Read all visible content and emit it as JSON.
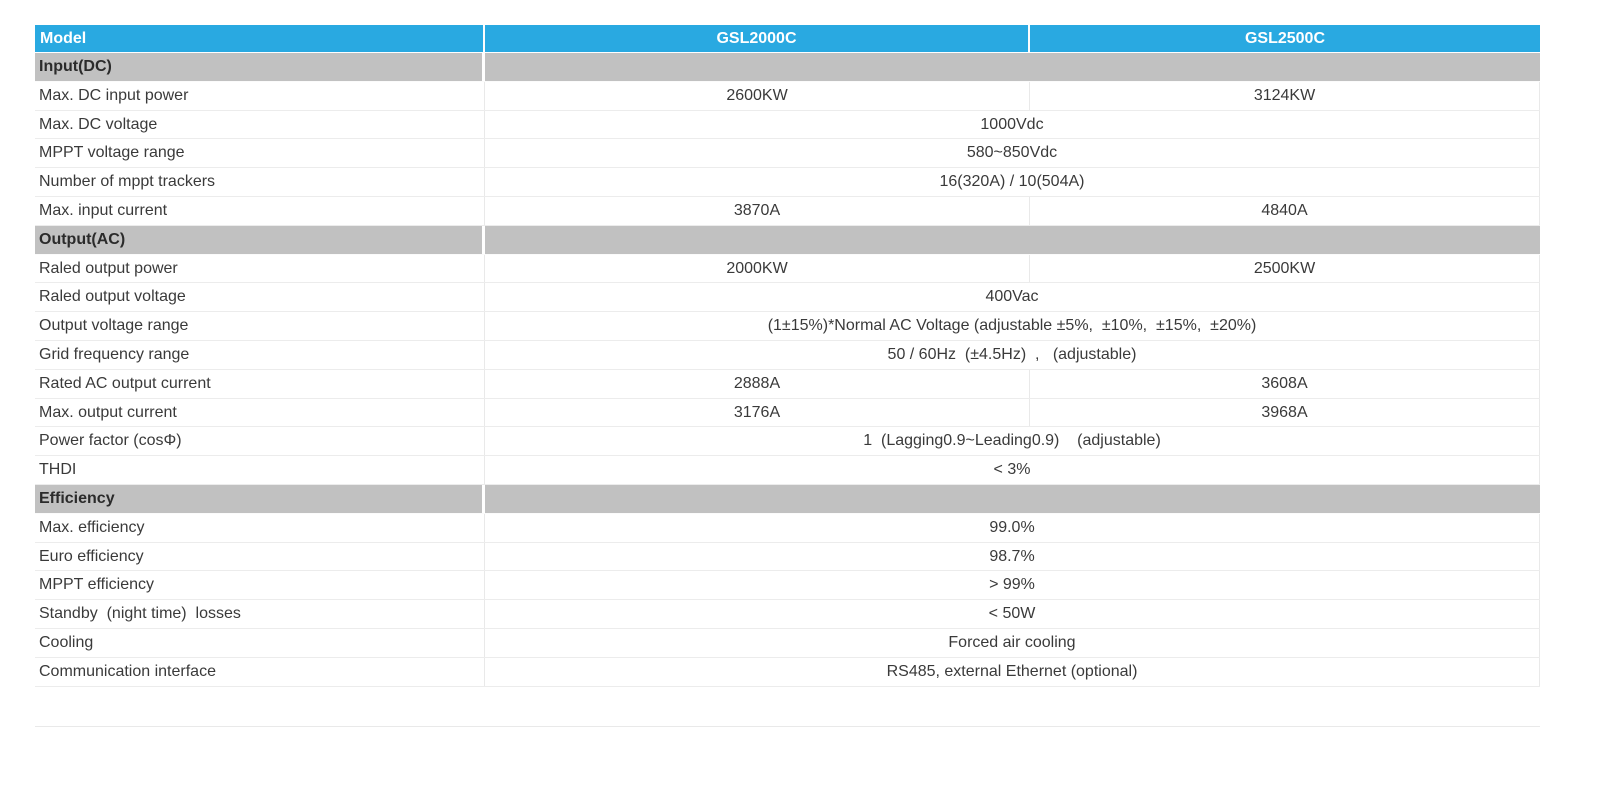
{
  "table": {
    "columns": [
      "Model",
      "GSL2000C",
      "GSL2500C"
    ],
    "colors": {
      "header_bg": "#29a9e1",
      "header_text": "#ffffff",
      "section_bg": "#c1c1c1",
      "body_text": "#3a3a3a",
      "grid_line": "#ececec"
    },
    "sections": [
      {
        "title": "Input(DC)",
        "rows": [
          {
            "label": "Max. DC input power",
            "values": [
              "2600KW",
              "3124KW"
            ]
          },
          {
            "label": "Max. DC voltage",
            "span": "1000Vdc"
          },
          {
            "label": "MPPT voltage range",
            "span": "580~850Vdc"
          },
          {
            "label": "Number of mppt trackers",
            "span": "16(320A) / 10(504A)"
          },
          {
            "label": "Max. input current",
            "values": [
              "3870A",
              "4840A"
            ]
          }
        ]
      },
      {
        "title": "Output(AC)",
        "rows": [
          {
            "label": "Raled output power",
            "values": [
              "2000KW",
              "2500KW"
            ]
          },
          {
            "label": "Raled output voltage",
            "span": "400Vac"
          },
          {
            "label": "Output voltage range",
            "span": "(1±15%)*Normal AC Voltage (adjustable ±5%,  ±10%,  ±15%,  ±20%)"
          },
          {
            "label": "Grid frequency range",
            "span": "50 / 60Hz  (±4.5Hz)  ,   (adjustable)"
          },
          {
            "label": "Rated AC output current",
            "values": [
              "2888A",
              "3608A"
            ]
          },
          {
            "label": "Max. output current",
            "values": [
              "3176A",
              "3968A"
            ]
          },
          {
            "label": "Power factor (cosΦ)",
            "span": "1  (Lagging0.9~Leading0.9)    (adjustable)"
          },
          {
            "label": "THDI",
            "span": "< 3%"
          }
        ]
      },
      {
        "title": "Efficiency",
        "rows": [
          {
            "label": "Max. efficiency",
            "span": "99.0%"
          },
          {
            "label": "Euro efficiency",
            "span": "98.7%"
          },
          {
            "label": "MPPT efficiency",
            "span": "> 99%"
          },
          {
            "label": "Standby  (night time)  losses",
            "span": "< 50W"
          },
          {
            "label": "Cooling",
            "span": "Forced air cooling"
          },
          {
            "label": "Communication interface",
            "span": "RS485, external Ethernet (optional)"
          }
        ]
      }
    ]
  }
}
